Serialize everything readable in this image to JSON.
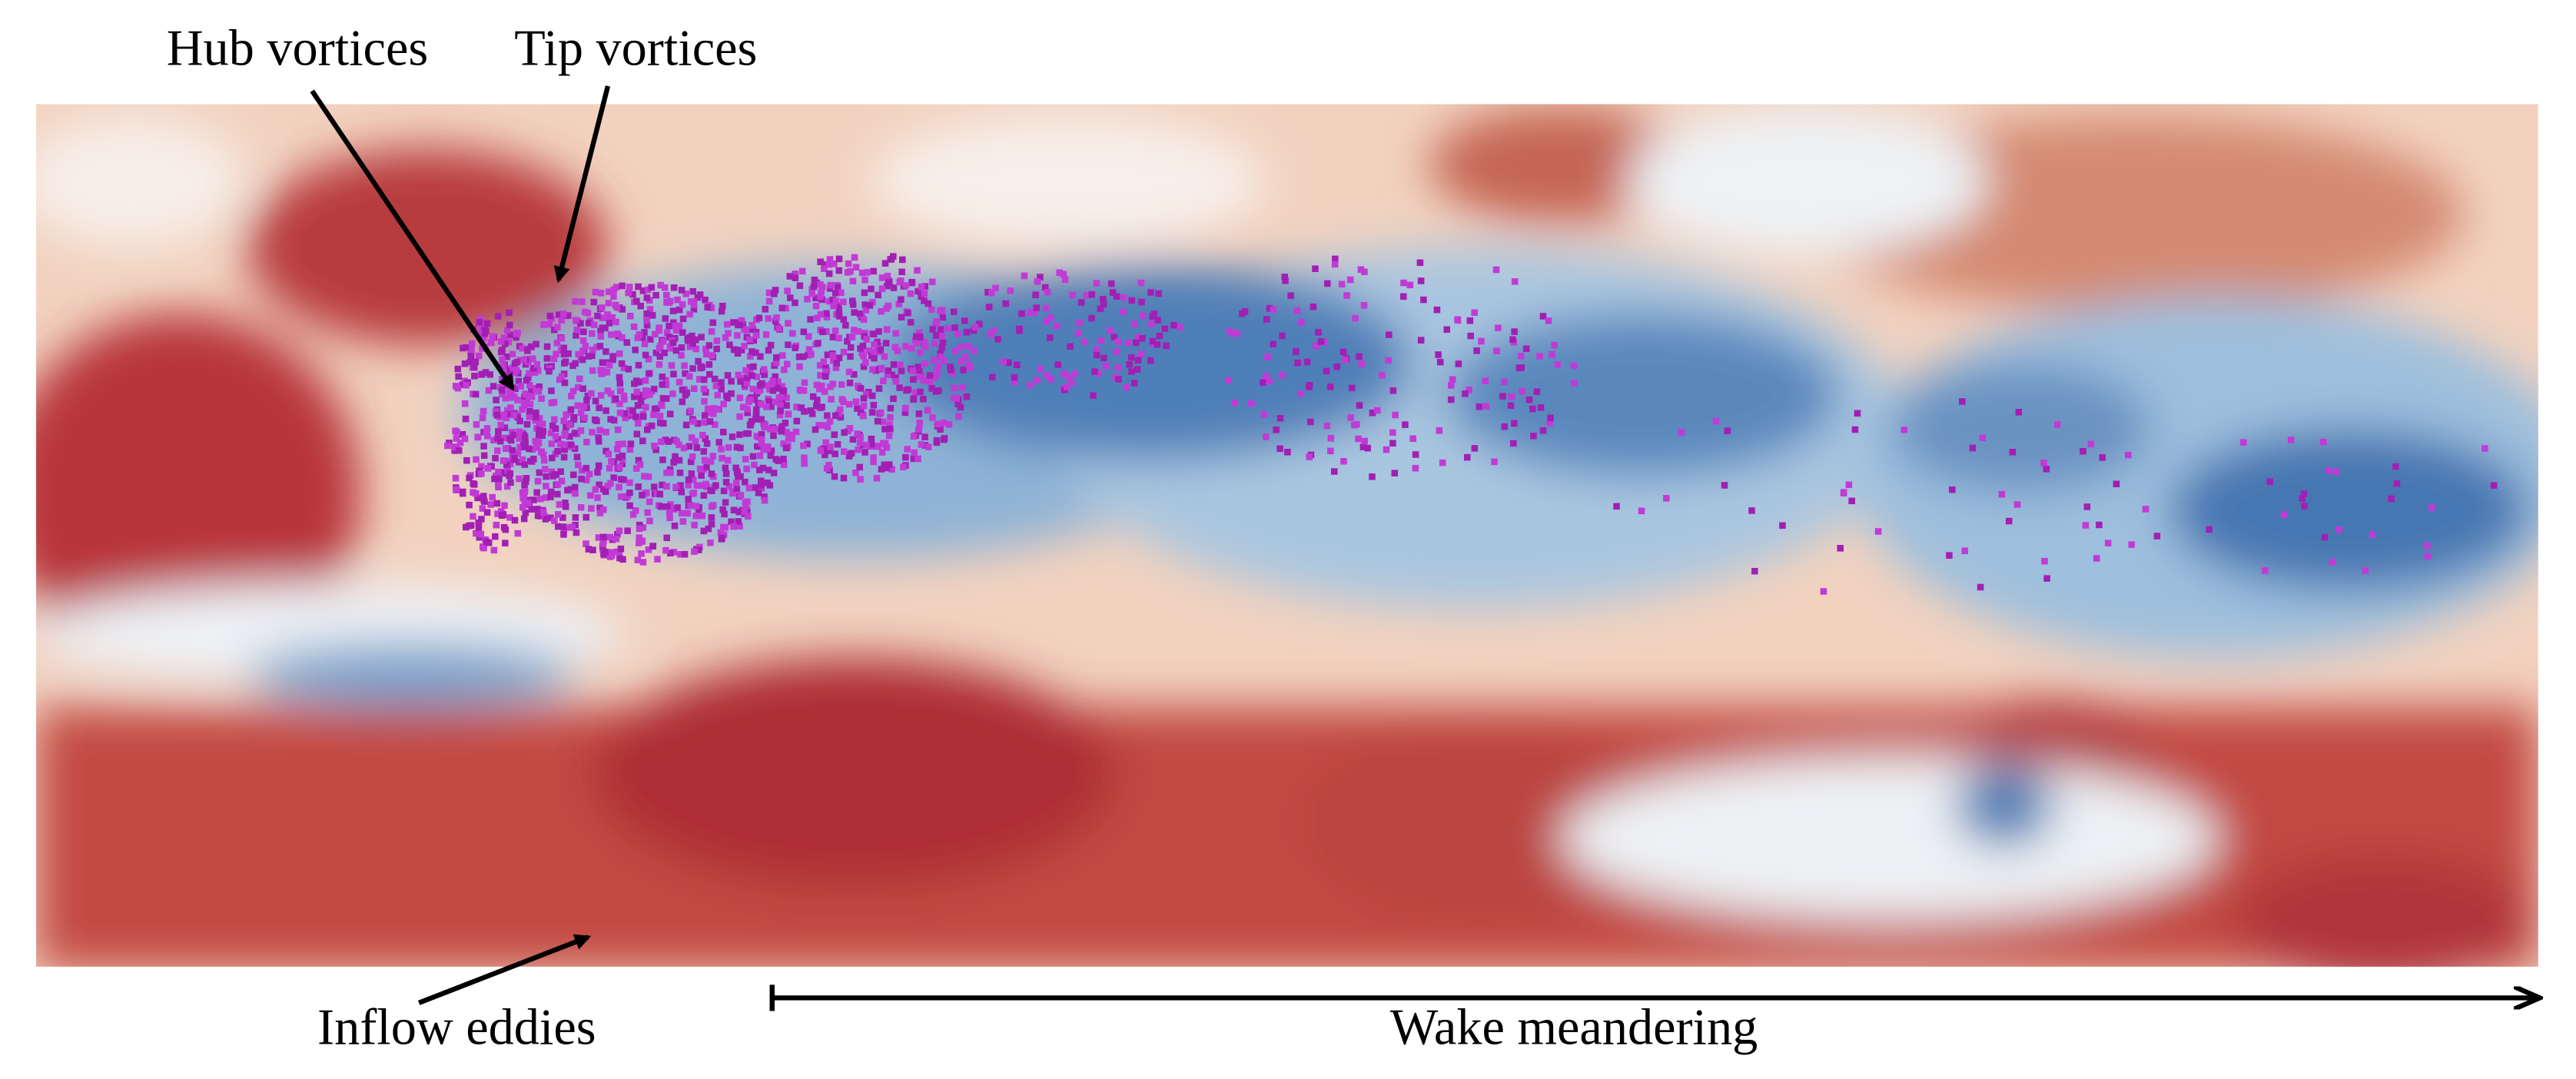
{
  "annotations": {
    "hub": "Hub vortices",
    "tip": "Tip vortices",
    "inflow": "Inflow eddies",
    "wake": "Wake meandering"
  }
}
